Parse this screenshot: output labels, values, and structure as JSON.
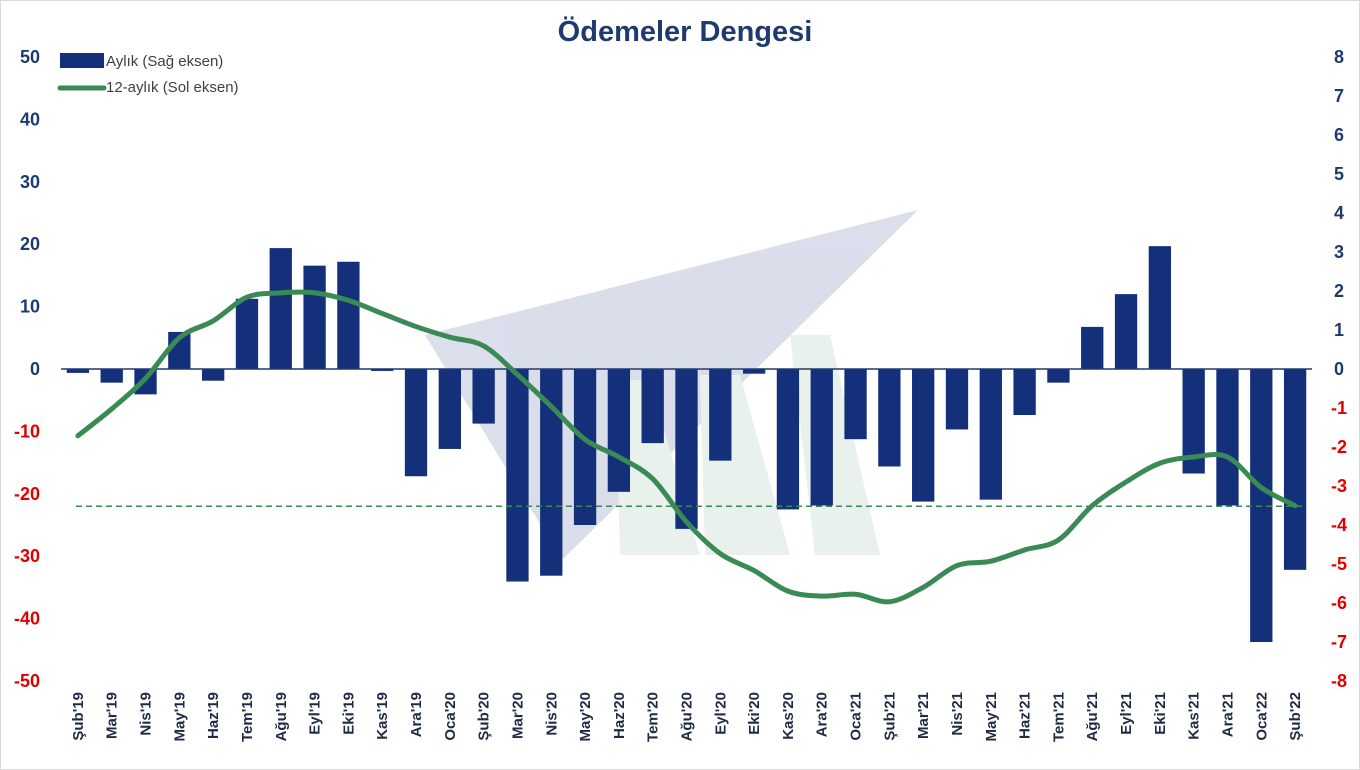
{
  "chart_data": {
    "type": "bar",
    "title": "Ödemeler Dengesi",
    "categories": [
      "Şub'19",
      "Mar'19",
      "Nis'19",
      "May'19",
      "Haz'19",
      "Tem'19",
      "Ağu'19",
      "Eyl'19",
      "Eki'19",
      "Kas'19",
      "Ara'19",
      "Oca'20",
      "Şub'20",
      "Mar'20",
      "Nis'20",
      "May'20",
      "Haz'20",
      "Tem'20",
      "Ağu'20",
      "Eyl'20",
      "Eki'20",
      "Kas'20",
      "Ara'20",
      "Oca'21",
      "Şub'21",
      "Mar'21",
      "Nis'21",
      "May'21",
      "Haz'21",
      "Tem'21",
      "Ağu'21",
      "Eyl'21",
      "Eki'21",
      "Kas'21",
      "Ara'21",
      "Oca'22",
      "Şub'22"
    ],
    "series": [
      {
        "name": "Aylık (Sağ eksen)",
        "type": "bar",
        "axis": "right",
        "color": "#14307a",
        "values": [
          -0.1,
          -0.35,
          -0.65,
          0.95,
          -0.3,
          1.8,
          3.1,
          2.65,
          2.75,
          -0.05,
          -2.75,
          -2.05,
          -1.4,
          -5.45,
          -5.3,
          -4.0,
          -3.15,
          -1.9,
          -4.1,
          -2.35,
          -0.12,
          -3.6,
          -3.5,
          -1.8,
          -2.5,
          -3.4,
          -1.55,
          -3.35,
          -1.18,
          -0.35,
          1.08,
          1.92,
          3.15,
          -2.68,
          -3.5,
          -7.0,
          -5.15
        ]
      },
      {
        "name": "12-aylık (Sol eksen)",
        "type": "line",
        "axis": "left",
        "color": "#3a8a55",
        "values": [
          -10.7,
          -6.4,
          -1.5,
          5.0,
          7.7,
          11.5,
          12.2,
          12.2,
          11.0,
          8.9,
          6.8,
          5.1,
          3.7,
          -0.9,
          -6.0,
          -11.3,
          -14.1,
          -17.6,
          -24.5,
          -29.6,
          -32.3,
          -35.6,
          -36.4,
          -36.1,
          -37.3,
          -35.0,
          -31.5,
          -30.8,
          -29.0,
          -27.4,
          -21.9,
          -18.1,
          -15.1,
          -14.1,
          -14.1,
          -19.0,
          -21.9
        ]
      }
    ],
    "reference_line": {
      "axis": "left",
      "value": -22,
      "style": "dashed",
      "color": "#3a8a55"
    },
    "ylim_left": [
      -50,
      50
    ],
    "yticks_left": [
      50,
      40,
      30,
      20,
      10,
      0,
      -10,
      -20,
      -30,
      -40,
      -50
    ],
    "ylim_right": [
      -8,
      8
    ],
    "yticks_right": [
      8,
      7,
      6,
      5,
      4,
      3,
      2,
      1,
      0,
      -1,
      -2,
      -3,
      -4,
      -5,
      -6,
      -7,
      -8
    ],
    "positive_tick_color": "#1f3a6e",
    "negative_tick_color": "#e00000",
    "xlabel": "",
    "ylabel": "",
    "legend_position": "top-left",
    "grid": false
  }
}
